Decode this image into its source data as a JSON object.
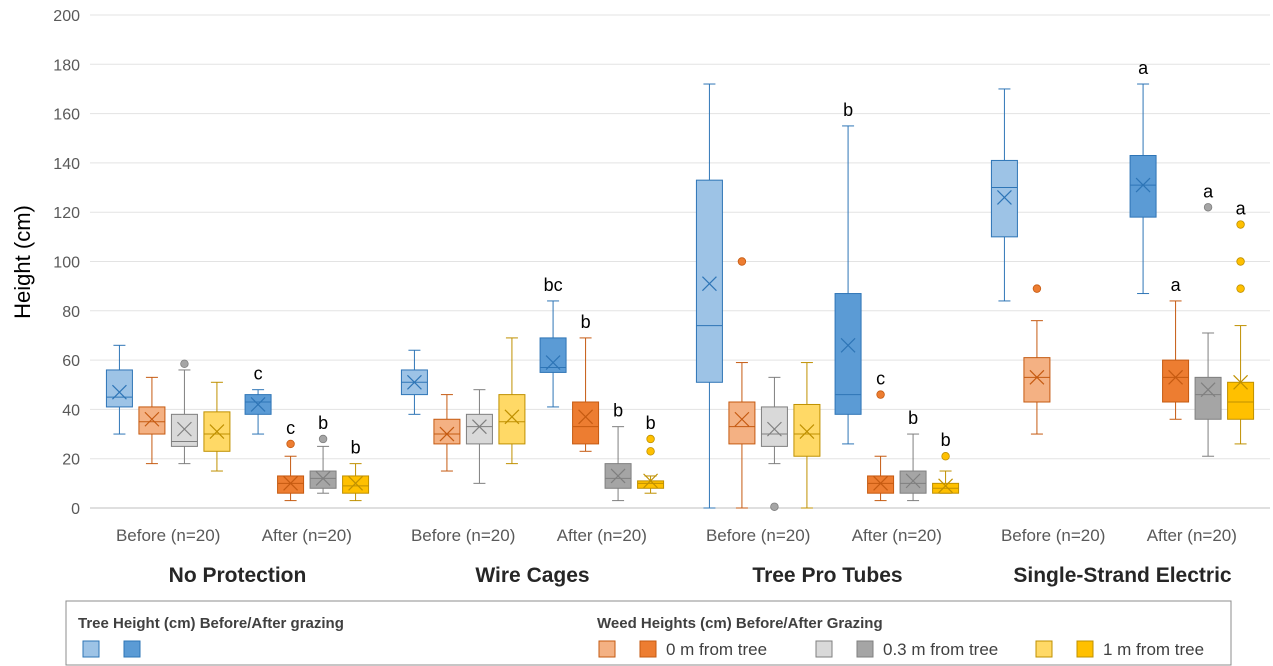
{
  "chart_data": {
    "type": "box",
    "ylabel": "Height (cm)",
    "ylim": [
      0,
      200
    ],
    "yticks": [
      0,
      20,
      40,
      60,
      80,
      100,
      120,
      140,
      160,
      180,
      200
    ],
    "grid": true,
    "groups": [
      {
        "name": "No Protection",
        "timepoints": [
          "Before (n=20)",
          "After (n=20)"
        ]
      },
      {
        "name": "Wire Cages",
        "timepoints": [
          "Before (n=20)",
          "After (n=20)"
        ]
      },
      {
        "name": "Tree Pro Tubes",
        "timepoints": [
          "Before (n=20)",
          "After (n=20)"
        ]
      },
      {
        "name": "Single-Strand Electric",
        "timepoints": [
          "Before (n=20)",
          "After (n=20)"
        ]
      }
    ],
    "series_order": [
      "tree",
      "weed_0",
      "weed_03",
      "weed_1"
    ],
    "legend": {
      "tree_title": "Tree Height (cm) Before/After grazing",
      "weed_title": "Weed Heights (cm) Before/After Grazing",
      "weed_labels": [
        "0 m from tree",
        "0.3 m from tree",
        "1 m from tree"
      ]
    },
    "colors": {
      "tree": {
        "before_fill": "#9dc3e6",
        "after_fill": "#5b9bd5",
        "stroke": "#2e75b6"
      },
      "weed_0": {
        "before_fill": "#f4b183",
        "after_fill": "#ed7d31",
        "stroke": "#c55a11"
      },
      "weed_03": {
        "before_fill": "#d9d9d9",
        "after_fill": "#a5a5a5",
        "stroke": "#7f7f7f"
      },
      "weed_1": {
        "before_fill": "#ffd966",
        "after_fill": "#ffc000",
        "stroke": "#bf9000"
      }
    },
    "boxes": [
      {
        "group": 0,
        "time": 0,
        "series": "tree",
        "min": 30,
        "q1": 41,
        "median": 45,
        "q3": 56,
        "max": 66,
        "mean": 47,
        "outliers": [],
        "label": ""
      },
      {
        "group": 0,
        "time": 0,
        "series": "weed_0",
        "min": 18,
        "q1": 30,
        "median": 35,
        "q3": 41,
        "max": 53,
        "mean": 36,
        "outliers": [],
        "label": ""
      },
      {
        "group": 0,
        "time": 0,
        "series": "weed_03",
        "min": 18,
        "q1": 25,
        "median": 27,
        "q3": 38,
        "max": 56,
        "mean": 32,
        "outliers": [
          58.5
        ],
        "label": ""
      },
      {
        "group": 0,
        "time": 0,
        "series": "weed_1",
        "min": 15,
        "q1": 23,
        "median": 30,
        "q3": 39,
        "max": 51,
        "mean": 31,
        "outliers": [],
        "label": ""
      },
      {
        "group": 0,
        "time": 1,
        "series": "tree",
        "min": 30,
        "q1": 38,
        "median": 43,
        "q3": 46,
        "max": 48,
        "mean": 42,
        "outliers": [],
        "label": "c"
      },
      {
        "group": 0,
        "time": 1,
        "series": "weed_0",
        "min": 3,
        "q1": 6,
        "median": 10,
        "q3": 13,
        "max": 21,
        "mean": 10,
        "outliers": [
          26
        ],
        "label": "c"
      },
      {
        "group": 0,
        "time": 1,
        "series": "weed_03",
        "min": 6,
        "q1": 8,
        "median": 12,
        "q3": 15,
        "max": 25,
        "mean": 12,
        "outliers": [
          28
        ],
        "label": "b"
      },
      {
        "group": 0,
        "time": 1,
        "series": "weed_1",
        "min": 3,
        "q1": 6,
        "median": 9,
        "q3": 13,
        "max": 18,
        "mean": 10,
        "outliers": [],
        "label": "b"
      },
      {
        "group": 1,
        "time": 0,
        "series": "tree",
        "min": 38,
        "q1": 46,
        "median": 51,
        "q3": 56,
        "max": 64,
        "mean": 51,
        "outliers": [],
        "label": ""
      },
      {
        "group": 1,
        "time": 0,
        "series": "weed_0",
        "min": 15,
        "q1": 26,
        "median": 30,
        "q3": 36,
        "max": 46,
        "mean": 30,
        "outliers": [],
        "label": ""
      },
      {
        "group": 1,
        "time": 0,
        "series": "weed_03",
        "min": 10,
        "q1": 26,
        "median": 33,
        "q3": 38,
        "max": 48,
        "mean": 33,
        "outliers": [],
        "label": ""
      },
      {
        "group": 1,
        "time": 0,
        "series": "weed_1",
        "min": 18,
        "q1": 26,
        "median": 35,
        "q3": 46,
        "max": 69,
        "mean": 37,
        "outliers": [],
        "label": ""
      },
      {
        "group": 1,
        "time": 1,
        "series": "tree",
        "min": 41,
        "q1": 55,
        "median": 57,
        "q3": 69,
        "max": 84,
        "mean": 59,
        "outliers": [],
        "label": "bc"
      },
      {
        "group": 1,
        "time": 1,
        "series": "weed_0",
        "min": 23,
        "q1": 26,
        "median": 33,
        "q3": 43,
        "max": 69,
        "mean": 37,
        "outliers": [],
        "label": "b"
      },
      {
        "group": 1,
        "time": 1,
        "series": "weed_03",
        "min": 3,
        "q1": 8,
        "median": 12,
        "q3": 18,
        "max": 33,
        "mean": 13,
        "outliers": [],
        "label": "b"
      },
      {
        "group": 1,
        "time": 1,
        "series": "weed_1",
        "min": 6,
        "q1": 8,
        "median": 10,
        "q3": 11,
        "max": 13,
        "mean": 11,
        "outliers": [
          23,
          28
        ],
        "label": "b"
      },
      {
        "group": 2,
        "time": 0,
        "series": "tree",
        "min": 0,
        "q1": 51,
        "median": 74,
        "q3": 133,
        "max": 172,
        "mean": 91,
        "outliers": [],
        "label": ""
      },
      {
        "group": 2,
        "time": 0,
        "series": "weed_0",
        "min": 0,
        "q1": 26,
        "median": 33,
        "q3": 43,
        "max": 59,
        "mean": 36,
        "outliers": [
          100
        ],
        "label": ""
      },
      {
        "group": 2,
        "time": 0,
        "series": "weed_03",
        "min": 18,
        "q1": 25,
        "median": 30,
        "q3": 41,
        "max": 53,
        "mean": 32,
        "outliers": [
          0.5
        ],
        "label": ""
      },
      {
        "group": 2,
        "time": 0,
        "series": "weed_1",
        "min": 0,
        "q1": 21,
        "median": 30,
        "q3": 42,
        "max": 59,
        "mean": 31,
        "outliers": [],
        "label": ""
      },
      {
        "group": 2,
        "time": 1,
        "series": "tree",
        "min": 26,
        "q1": 38,
        "median": 46,
        "q3": 87,
        "max": 155,
        "mean": 66,
        "outliers": [],
        "label": "b"
      },
      {
        "group": 2,
        "time": 1,
        "series": "weed_0",
        "min": 3,
        "q1": 6,
        "median": 10,
        "q3": 13,
        "max": 21,
        "mean": 10,
        "outliers": [
          46
        ],
        "label": "c"
      },
      {
        "group": 2,
        "time": 1,
        "series": "weed_03",
        "min": 3,
        "q1": 6,
        "median": 10,
        "q3": 15,
        "max": 30,
        "mean": 11,
        "outliers": [],
        "label": "b"
      },
      {
        "group": 2,
        "time": 1,
        "series": "weed_1",
        "min": 6,
        "q1": 6,
        "median": 8,
        "q3": 10,
        "max": 15,
        "mean": 9,
        "outliers": [
          21
        ],
        "label": "b"
      },
      {
        "group": 3,
        "time": 0,
        "series": "tree",
        "min": 84,
        "q1": 110,
        "median": 130,
        "q3": 141,
        "max": 170,
        "mean": 126,
        "outliers": [],
        "label": ""
      },
      {
        "group": 3,
        "time": 0,
        "series": "weed_0",
        "min": 30,
        "q1": 43,
        "median": 53,
        "q3": 61,
        "max": 76,
        "mean": 53,
        "outliers": [
          89
        ],
        "label": ""
      },
      {
        "group": 3,
        "time": 1,
        "series": "tree",
        "min": 87,
        "q1": 118,
        "median": 131,
        "q3": 143,
        "max": 172,
        "mean": 131,
        "outliers": [],
        "label": "a"
      },
      {
        "group": 3,
        "time": 1,
        "series": "weed_0",
        "min": 36,
        "q1": 43,
        "median": 53,
        "q3": 60,
        "max": 84,
        "mean": 53,
        "outliers": [],
        "label": "a"
      },
      {
        "group": 3,
        "time": 1,
        "series": "weed_03",
        "min": 21,
        "q1": 36,
        "median": 46,
        "q3": 53,
        "max": 71,
        "mean": 48,
        "outliers": [
          122
        ],
        "label": "a"
      },
      {
        "group": 3,
        "time": 1,
        "series": "weed_1",
        "min": 26,
        "q1": 36,
        "median": 43,
        "q3": 51,
        "max": 74,
        "mean": 51,
        "outliers": [
          89,
          100,
          115
        ],
        "label": "a"
      }
    ]
  }
}
